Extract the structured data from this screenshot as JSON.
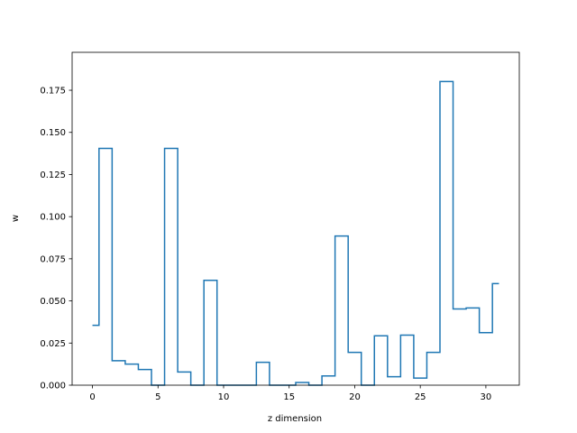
{
  "chart_data": {
    "type": "line",
    "drawstyle": "steps-mid",
    "title": "",
    "xlabel": "z dimension",
    "ylabel": "w",
    "xlim": [
      -1.55,
      32.55
    ],
    "ylim": [
      0,
      0.1975
    ],
    "xticks": [
      0,
      5,
      10,
      15,
      20,
      25,
      30
    ],
    "xtick_labels": [
      "0",
      "5",
      "10",
      "15",
      "20",
      "25",
      "30"
    ],
    "yticks": [
      0.0,
      0.025,
      0.05,
      0.075,
      0.1,
      0.125,
      0.15,
      0.175
    ],
    "ytick_labels": [
      "0.000",
      "0.025",
      "0.050",
      "0.075",
      "0.100",
      "0.125",
      "0.150",
      "0.175"
    ],
    "grid": false,
    "series": [
      {
        "color": "#1f77b4",
        "x": [
          0,
          1,
          2,
          3,
          4,
          5,
          6,
          7,
          8,
          9,
          10,
          11,
          12,
          13,
          14,
          15,
          16,
          17,
          18,
          19,
          20,
          21,
          22,
          23,
          24,
          25,
          26,
          27,
          28,
          29,
          30,
          31
        ],
        "values": [
          0.0355,
          0.1405,
          0.0145,
          0.0125,
          0.0093,
          0.0,
          0.1405,
          0.0078,
          0.0,
          0.0622,
          0.0,
          0.0,
          0.0,
          0.0136,
          0.0,
          0.0,
          0.0016,
          0.0,
          0.0055,
          0.0885,
          0.0195,
          0.0,
          0.0293,
          0.005,
          0.0297,
          0.0042,
          0.0195,
          0.1802,
          0.0452,
          0.0458,
          0.0312,
          0.0603
        ]
      }
    ]
  }
}
